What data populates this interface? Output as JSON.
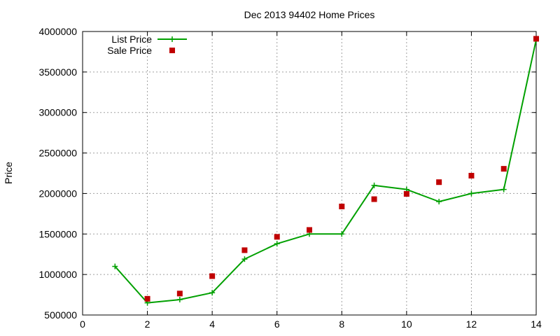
{
  "chart_data": {
    "type": "line",
    "title": "Dec 2013 94402 Home Prices",
    "xlabel": "",
    "ylabel": "Price",
    "xlim": [
      0,
      14
    ],
    "ylim": [
      500000,
      4000000
    ],
    "x_ticks": [
      0,
      2,
      4,
      6,
      8,
      10,
      12,
      14
    ],
    "y_ticks": [
      500000,
      1000000,
      1500000,
      2000000,
      2500000,
      3000000,
      3500000,
      4000000
    ],
    "x_tick_labels": [
      "0",
      "2",
      "4",
      "6",
      "8",
      "10",
      "12",
      "14"
    ],
    "y_tick_labels": [
      "500000",
      "1000000",
      "1500000",
      "2000000",
      "2500000",
      "3000000",
      "3500000",
      "4000000"
    ],
    "grid": true,
    "legend_position": "top-left",
    "series": [
      {
        "name": "List Price",
        "style": "linespoints",
        "marker": "plus",
        "color": "#00a000",
        "x": [
          1,
          2,
          3,
          4,
          5,
          6,
          7,
          8,
          9,
          10,
          11,
          12,
          13,
          14
        ],
        "values": [
          1100000,
          650000,
          690000,
          775000,
          1190000,
          1380000,
          1500000,
          1500000,
          2100000,
          2050000,
          1900000,
          2000000,
          2050000,
          3900000
        ]
      },
      {
        "name": "Sale Price",
        "style": "points",
        "marker": "square",
        "color": "#c00000",
        "x": [
          2,
          3,
          4,
          5,
          6,
          7,
          8,
          9,
          10,
          11,
          12,
          13,
          14
        ],
        "values": [
          700000,
          765000,
          980000,
          1300000,
          1465000,
          1550000,
          1840000,
          1930000,
          1995000,
          2140000,
          2220000,
          2305000,
          3910000
        ]
      }
    ]
  }
}
